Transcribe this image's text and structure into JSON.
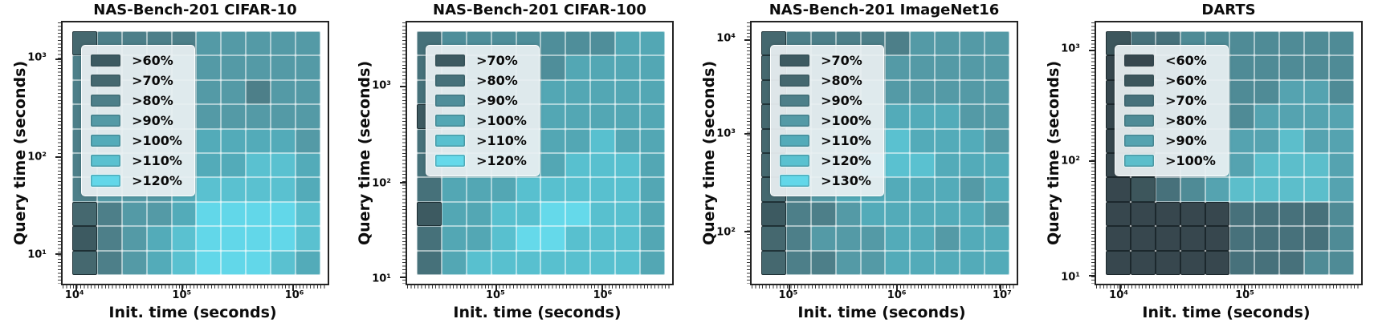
{
  "page": {
    "background": "#ffffff"
  },
  "chart_data": [
    {
      "type": "heatmap",
      "title": "NAS-Bench-201 CIFAR-10",
      "xlabel": "Init. time (seconds)",
      "ylabel": "Query time (seconds)",
      "x_scale": "log",
      "y_scale": "log",
      "x_range": [
        8000,
        2100000
      ],
      "y_range": [
        5,
        2400
      ],
      "x_ticks": [
        {
          "label": "10⁴",
          "pos": 0.05
        },
        {
          "label": "10⁵",
          "pos": 0.45
        },
        {
          "label": "10⁶",
          "pos": 0.87
        }
      ],
      "y_ticks": [
        {
          "label": "10³",
          "pos": 0.14
        },
        {
          "label": "10²",
          "pos": 0.515
        },
        {
          "label": "10¹",
          "pos": 0.885
        }
      ],
      "legend": [
        {
          "label": ">60%",
          "color": "#3d5a61"
        },
        {
          "label": ">70%",
          "color": "#45686f"
        },
        {
          "label": ">80%",
          "color": "#4d7f89"
        },
        {
          "label": ">90%",
          "color": "#549aa6"
        },
        {
          "label": ">100%",
          "color": "#53abb9"
        },
        {
          "label": ">110%",
          "color": "#5ac1d0"
        },
        {
          "label": ">120%",
          "color": "#62d7e9"
        }
      ],
      "grid_levels": [
        [
          1,
          2,
          2,
          2,
          2,
          3,
          3,
          3,
          3,
          3
        ],
        [
          2,
          2,
          2,
          2,
          3,
          3,
          3,
          3,
          3,
          3
        ],
        [
          2,
          2,
          2,
          3,
          3,
          3,
          3,
          2,
          3,
          3
        ],
        [
          2,
          2,
          3,
          3,
          3,
          3,
          3,
          3,
          3,
          3
        ],
        [
          2,
          2,
          3,
          3,
          3,
          4,
          4,
          4,
          4,
          3
        ],
        [
          2,
          3,
          3,
          3,
          4,
          4,
          4,
          5,
          5,
          4
        ],
        [
          2,
          3,
          3,
          3,
          4,
          5,
          5,
          5,
          5,
          4
        ],
        [
          1,
          2,
          3,
          3,
          4,
          6,
          6,
          6,
          6,
          5
        ],
        [
          0,
          2,
          3,
          4,
          5,
          6,
          6,
          6,
          6,
          5
        ],
        [
          1,
          2,
          3,
          4,
          5,
          6,
          6,
          6,
          5,
          4
        ]
      ]
    },
    {
      "type": "heatmap",
      "title": "NAS-Bench-201 CIFAR-100",
      "xlabel": "Init. time (seconds)",
      "ylabel": "Query time (seconds)",
      "x_scale": "log",
      "y_scale": "log",
      "x_range": [
        14000,
        4600000
      ],
      "y_range": [
        8,
        4600
      ],
      "x_ticks": [
        {
          "label": "10⁵",
          "pos": 0.335
        },
        {
          "label": "10⁶",
          "pos": 0.735
        }
      ],
      "y_ticks": [
        {
          "label": "10³",
          "pos": 0.245
        },
        {
          "label": "10²",
          "pos": 0.615
        },
        {
          "label": "10¹",
          "pos": 0.975
        }
      ],
      "legend": [
        {
          "label": ">70%",
          "color": "#3d5a61"
        },
        {
          "label": ">80%",
          "color": "#46717a"
        },
        {
          "label": ">90%",
          "color": "#4f8e9a"
        },
        {
          "label": ">100%",
          "color": "#53a7b4"
        },
        {
          "label": ">110%",
          "color": "#58c0cf"
        },
        {
          "label": ">120%",
          "color": "#65d9ea"
        }
      ],
      "grid_levels": [
        [
          1,
          2,
          2,
          2,
          2,
          2,
          2,
          2,
          3,
          3
        ],
        [
          1,
          2,
          2,
          2,
          2,
          2,
          3,
          3,
          3,
          3
        ],
        [
          1,
          2,
          2,
          2,
          2,
          3,
          3,
          3,
          3,
          3
        ],
        [
          0,
          2,
          2,
          2,
          2,
          3,
          3,
          3,
          3,
          3
        ],
        [
          1,
          2,
          2,
          2,
          3,
          3,
          3,
          4,
          3,
          3
        ],
        [
          1,
          2,
          3,
          3,
          3,
          3,
          4,
          4,
          4,
          3
        ],
        [
          1,
          3,
          3,
          3,
          4,
          4,
          4,
          4,
          4,
          3
        ],
        [
          0,
          3,
          3,
          4,
          4,
          5,
          5,
          4,
          4,
          3
        ],
        [
          1,
          3,
          3,
          4,
          5,
          5,
          4,
          4,
          4,
          3
        ],
        [
          1,
          3,
          4,
          4,
          4,
          4,
          4,
          4,
          4,
          3
        ]
      ]
    },
    {
      "type": "heatmap",
      "title": "NAS-Bench-201 ImageNet16",
      "xlabel": "Init. time (seconds)",
      "ylabel": "Query time (seconds)",
      "x_scale": "log",
      "y_scale": "log",
      "x_range": [
        45000,
        14000000
      ],
      "y_range": [
        28,
        15000
      ],
      "x_ticks": [
        {
          "label": "10⁵",
          "pos": 0.142
        },
        {
          "label": "10⁶",
          "pos": 0.547
        },
        {
          "label": "10⁷",
          "pos": 0.94
        }
      ],
      "y_ticks": [
        {
          "label": "10⁴",
          "pos": 0.067
        },
        {
          "label": "10³",
          "pos": 0.427
        },
        {
          "label": "10²",
          "pos": 0.8
        }
      ],
      "legend": [
        {
          "label": ">70%",
          "color": "#3d5a61"
        },
        {
          "label": ">80%",
          "color": "#45686f"
        },
        {
          "label": ">90%",
          "color": "#4d7f89"
        },
        {
          "label": ">100%",
          "color": "#549aa6"
        },
        {
          "label": ">110%",
          "color": "#53abb9"
        },
        {
          "label": ">120%",
          "color": "#5ac1d0"
        },
        {
          "label": ">130%",
          "color": "#62d7e9"
        }
      ],
      "grid_levels": [
        [
          1,
          2,
          2,
          2,
          2,
          2,
          3,
          3,
          3,
          3
        ],
        [
          1,
          2,
          2,
          2,
          2,
          3,
          3,
          3,
          3,
          3
        ],
        [
          1,
          2,
          2,
          2,
          3,
          3,
          3,
          3,
          3,
          3
        ],
        [
          1,
          2,
          2,
          3,
          3,
          4,
          4,
          4,
          3,
          3
        ],
        [
          1,
          2,
          3,
          3,
          4,
          5,
          4,
          4,
          4,
          3
        ],
        [
          1,
          2,
          3,
          3,
          6,
          5,
          5,
          4,
          4,
          4
        ],
        [
          1,
          2,
          3,
          4,
          4,
          4,
          4,
          4,
          3,
          4
        ],
        [
          0,
          2,
          2,
          3,
          4,
          4,
          4,
          4,
          4,
          3
        ],
        [
          1,
          2,
          3,
          3,
          3,
          4,
          4,
          3,
          4,
          4
        ],
        [
          1,
          2,
          2,
          3,
          3,
          4,
          4,
          4,
          4,
          4
        ]
      ]
    },
    {
      "type": "heatmap",
      "title": "DARTS",
      "xlabel": "Init. time (seconds)",
      "ylabel": "Query time (seconds)",
      "x_scale": "log",
      "y_scale": "log",
      "x_range": [
        6500,
        870000
      ],
      "y_range": [
        8,
        1700
      ],
      "x_ticks": [
        {
          "label": "10⁴",
          "pos": 0.09
        },
        {
          "label": "10⁵",
          "pos": 0.56
        }
      ],
      "y_ticks": [
        {
          "label": "10³",
          "pos": 0.106
        },
        {
          "label": "10²",
          "pos": 0.53
        },
        {
          "label": "10¹",
          "pos": 0.97
        }
      ],
      "legend": [
        {
          "label": "<60%",
          "color": "#37474e"
        },
        {
          "label": ">60%",
          "color": "#3d565c"
        },
        {
          "label": ">70%",
          "color": "#47717b"
        },
        {
          "label": ">80%",
          "color": "#4f8b96"
        },
        {
          "label": ">90%",
          "color": "#55a3b0"
        },
        {
          "label": ">100%",
          "color": "#5cbecb"
        }
      ],
      "grid_levels": [
        [
          1,
          2,
          2,
          3,
          3,
          3,
          3,
          3,
          3,
          3
        ],
        [
          0,
          1,
          2,
          3,
          3,
          3,
          3,
          3,
          3,
          3
        ],
        [
          0,
          1,
          2,
          3,
          3,
          3,
          3,
          4,
          4,
          3
        ],
        [
          0,
          1,
          2,
          3,
          3,
          3,
          4,
          4,
          4,
          4
        ],
        [
          0,
          1,
          2,
          3,
          3,
          4,
          4,
          5,
          4,
          4
        ],
        [
          0,
          1,
          2,
          3,
          4,
          4,
          5,
          5,
          5,
          4
        ],
        [
          0,
          1,
          2,
          3,
          4,
          5,
          5,
          5,
          5,
          4
        ],
        [
          0,
          0,
          0,
          0,
          0,
          2,
          2,
          2,
          2,
          3
        ],
        [
          0,
          0,
          0,
          0,
          0,
          2,
          2,
          2,
          2,
          3
        ],
        [
          0,
          0,
          0,
          0,
          0,
          2,
          2,
          2,
          3,
          3
        ]
      ]
    }
  ]
}
